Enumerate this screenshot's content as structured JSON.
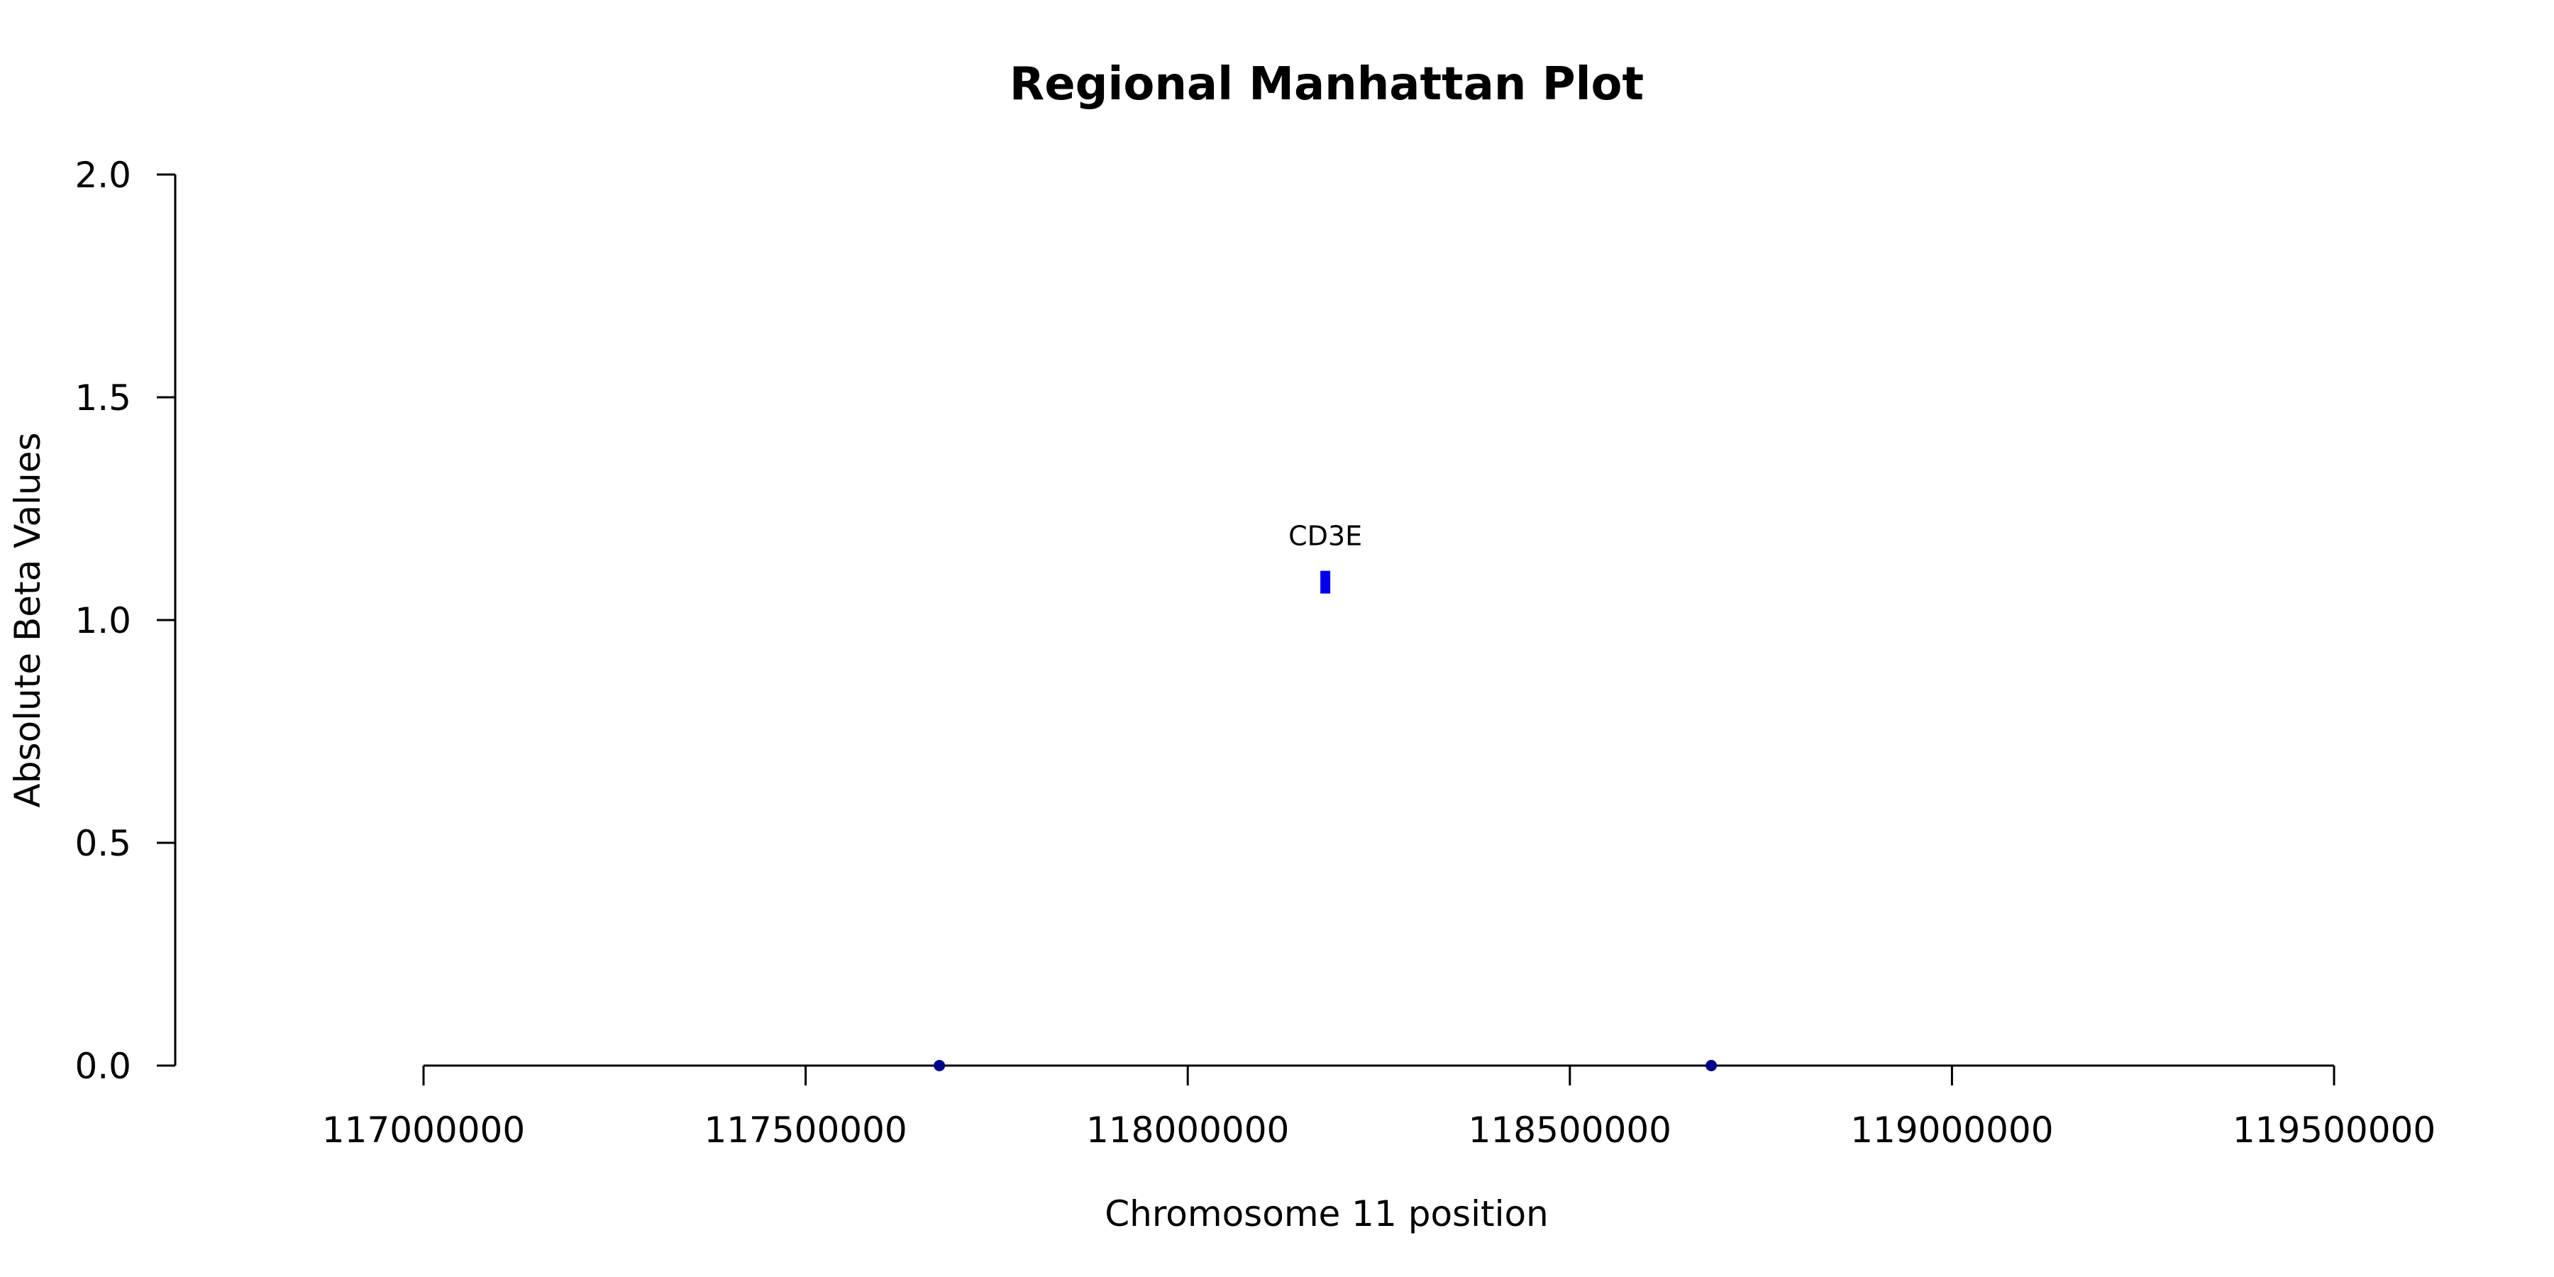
{
  "chart_data": {
    "type": "scatter",
    "title": "Regional Manhattan Plot",
    "xlabel": "Chromosome 11 position",
    "ylabel": "Absolute Beta Values",
    "xlim": [
      117000000,
      119500000
    ],
    "ylim": [
      0,
      2.0
    ],
    "x_ticks": [
      117000000,
      117500000,
      118000000,
      118500000,
      119000000,
      119500000
    ],
    "x_tick_labels": [
      "117000000",
      "117500000",
      "118000000",
      "118500000",
      "119000000",
      "119500000"
    ],
    "y_ticks": [
      0,
      0.5,
      1.0,
      1.5,
      2.0
    ],
    "y_tick_labels": [
      "0.0",
      "0.5",
      "1.0",
      "1.5",
      "2.0"
    ],
    "grid": false,
    "series": [
      {
        "points": [
          {
            "x": 117675000,
            "y": 0.0
          },
          {
            "x": 118685000,
            "y": 0.0
          }
        ],
        "color": "#00008b",
        "marker": "circle"
      },
      {
        "points": [
          {
            "x": 118180000,
            "y": 1.085,
            "label": "CD3E"
          }
        ],
        "color": "#0000ee",
        "marker": "bar"
      }
    ]
  }
}
